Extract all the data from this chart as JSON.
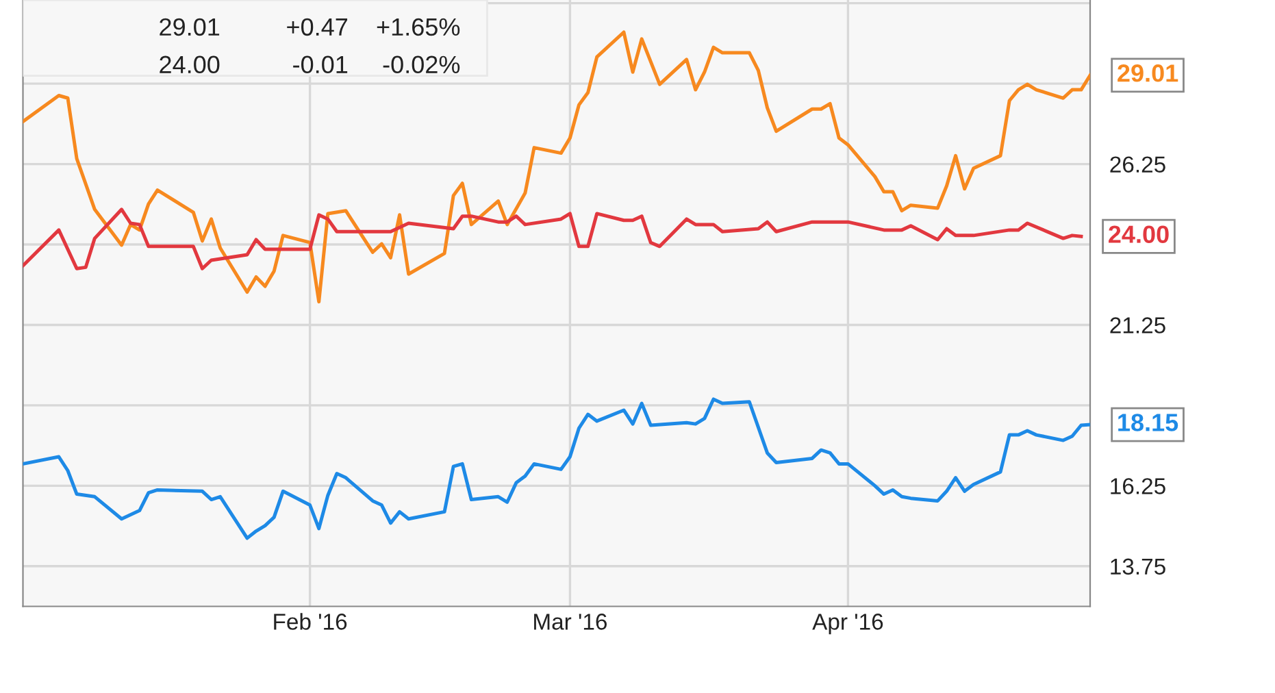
{
  "chart_data": {
    "type": "line",
    "xlim": [
      "2015-12-31",
      "2016-04-28"
    ],
    "xticks": [
      {
        "value": "2016-02-01",
        "label": "Feb '16"
      },
      {
        "value": "2016-03-01",
        "label": "Mar '16"
      },
      {
        "value": "2016-04-01",
        "label": "Apr '16"
      }
    ],
    "ylim": [
      12.5,
      31.35
    ],
    "yticks": [
      13.75,
      16.25,
      {
        "value": 18.75,
        "label": null
      },
      21.25,
      {
        "value": 23.75,
        "label": null
      },
      26.25,
      {
        "value": 28.75,
        "label": null
      },
      {
        "value": 31.25,
        "label": null
      }
    ],
    "grid": true,
    "marker": "none",
    "line_style": "solid",
    "series": [
      {
        "color": "#f7891f",
        "x": [
          "2015-12-31",
          "2016-01-04",
          "2016-01-05",
          "2016-01-06",
          "2016-01-08",
          "2016-01-11",
          "2016-01-12",
          "2016-01-13",
          "2016-01-14",
          "2016-01-15",
          "2016-01-19",
          "2016-01-20",
          "2016-01-21",
          "2016-01-22",
          "2016-01-25",
          "2016-01-26",
          "2016-01-27",
          "2016-01-28",
          "2016-01-29",
          "2016-02-01",
          "2016-02-02",
          "2016-02-03",
          "2016-02-05",
          "2016-02-08",
          "2016-02-09",
          "2016-02-10",
          "2016-02-11",
          "2016-02-12",
          "2016-02-16",
          "2016-02-17",
          "2016-02-18",
          "2016-02-19",
          "2016-02-22",
          "2016-02-23",
          "2016-02-25",
          "2016-02-26",
          "2016-02-29",
          "2016-03-01",
          "2016-03-02",
          "2016-03-03",
          "2016-03-04",
          "2016-03-07",
          "2016-03-08",
          "2016-03-09",
          "2016-03-11",
          "2016-03-14",
          "2016-03-15",
          "2016-03-16",
          "2016-03-17",
          "2016-03-18",
          "2016-03-21",
          "2016-03-22",
          "2016-03-23",
          "2016-03-24",
          "2016-03-28",
          "2016-03-29",
          "2016-03-30",
          "2016-03-31",
          "2016-04-01",
          "2016-04-04",
          "2016-04-05",
          "2016-04-06",
          "2016-04-07",
          "2016-04-08",
          "2016-04-11",
          "2016-04-12",
          "2016-04-13",
          "2016-04-14",
          "2016-04-15",
          "2016-04-18",
          "2016-04-19",
          "2016-04-20",
          "2016-04-21",
          "2016-04-22",
          "2016-04-25",
          "2016-04-26",
          "2016-04-27",
          "2016-04-28"
        ],
        "values": [
          27.57,
          28.38,
          28.3,
          26.42,
          24.84,
          23.73,
          24.37,
          24.2,
          25.01,
          25.44,
          24.75,
          23.86,
          24.54,
          23.64,
          22.27,
          22.74,
          22.45,
          22.92,
          24.03,
          23.81,
          21.97,
          24.71,
          24.8,
          23.51,
          23.77,
          23.34,
          24.67,
          22.83,
          23.47,
          25.27,
          25.65,
          24.37,
          25.1,
          24.37,
          25.35,
          26.76,
          26.59,
          27.06,
          28.09,
          28.47,
          29.58,
          30.35,
          29.11,
          30.14,
          28.73,
          29.5,
          28.56,
          29.11,
          29.88,
          29.71,
          29.71,
          29.16,
          28.0,
          27.27,
          27.96,
          27.96,
          28.13,
          27.06,
          26.85,
          25.86,
          25.39,
          25.39,
          24.8,
          24.97,
          24.88,
          25.57,
          26.51,
          25.48,
          26.12,
          26.51,
          28.22,
          28.56,
          28.73,
          28.56,
          28.3,
          28.56,
          28.56,
          29.01
        ]
      },
      {
        "color": "#e2383f",
        "x": [
          "2015-12-31",
          "2016-01-04",
          "2016-01-06",
          "2016-01-07",
          "2016-01-08",
          "2016-01-11",
          "2016-01-12",
          "2016-01-13",
          "2016-01-14",
          "2016-01-19",
          "2016-01-20",
          "2016-01-21",
          "2016-01-25",
          "2016-01-26",
          "2016-01-27",
          "2016-02-01",
          "2016-02-02",
          "2016-02-03",
          "2016-02-04",
          "2016-02-10",
          "2016-02-12",
          "2016-02-17",
          "2016-02-18",
          "2016-02-19",
          "2016-02-22",
          "2016-02-23",
          "2016-02-24",
          "2016-02-25",
          "2016-02-29",
          "2016-03-01",
          "2016-03-02",
          "2016-03-03",
          "2016-03-04",
          "2016-03-07",
          "2016-03-08",
          "2016-03-09",
          "2016-03-10",
          "2016-03-11",
          "2016-03-14",
          "2016-03-15",
          "2016-03-17",
          "2016-03-18",
          "2016-03-22",
          "2016-03-23",
          "2016-03-24",
          "2016-03-28",
          "2016-04-01",
          "2016-04-05",
          "2016-04-07",
          "2016-04-08",
          "2016-04-11",
          "2016-04-12",
          "2016-04-13",
          "2016-04-15",
          "2016-04-19",
          "2016-04-20",
          "2016-04-21",
          "2016-04-25",
          "2016-04-26",
          "2016-04-27"
        ],
        "values": [
          23.09,
          24.2,
          23.0,
          23.04,
          23.94,
          24.84,
          24.41,
          24.37,
          23.69,
          23.69,
          23.0,
          23.26,
          23.43,
          23.9,
          23.6,
          23.6,
          24.67,
          24.54,
          24.15,
          24.15,
          24.41,
          24.24,
          24.63,
          24.63,
          24.45,
          24.45,
          24.63,
          24.37,
          24.54,
          24.71,
          23.69,
          23.69,
          24.71,
          24.5,
          24.5,
          24.63,
          23.81,
          23.69,
          24.54,
          24.37,
          24.37,
          24.15,
          24.24,
          24.45,
          24.15,
          24.45,
          24.45,
          24.2,
          24.2,
          24.33,
          23.9,
          24.24,
          24.03,
          24.03,
          24.2,
          24.2,
          24.41,
          23.94,
          24.03,
          24.0
        ]
      },
      {
        "color": "#1e8ae6",
        "x": [
          "2015-12-31",
          "2016-01-04",
          "2016-01-05",
          "2016-01-06",
          "2016-01-08",
          "2016-01-11",
          "2016-01-13",
          "2016-01-14",
          "2016-01-15",
          "2016-01-20",
          "2016-01-21",
          "2016-01-22",
          "2016-01-25",
          "2016-01-26",
          "2016-01-27",
          "2016-01-28",
          "2016-01-29",
          "2016-02-01",
          "2016-02-02",
          "2016-02-03",
          "2016-02-04",
          "2016-02-05",
          "2016-02-08",
          "2016-02-09",
          "2016-02-10",
          "2016-02-11",
          "2016-02-12",
          "2016-02-16",
          "2016-02-17",
          "2016-02-18",
          "2016-02-19",
          "2016-02-22",
          "2016-02-23",
          "2016-02-24",
          "2016-02-25",
          "2016-02-26",
          "2016-02-29",
          "2016-03-01",
          "2016-03-02",
          "2016-03-03",
          "2016-03-04",
          "2016-03-07",
          "2016-03-08",
          "2016-03-09",
          "2016-03-10",
          "2016-03-14",
          "2016-03-15",
          "2016-03-16",
          "2016-03-17",
          "2016-03-18",
          "2016-03-21",
          "2016-03-23",
          "2016-03-24",
          "2016-03-28",
          "2016-03-29",
          "2016-03-30",
          "2016-03-31",
          "2016-04-01",
          "2016-04-04",
          "2016-04-05",
          "2016-04-06",
          "2016-04-07",
          "2016-04-08",
          "2016-04-11",
          "2016-04-12",
          "2016-04-13",
          "2016-04-14",
          "2016-04-15",
          "2016-04-18",
          "2016-04-19",
          "2016-04-20",
          "2016-04-21",
          "2016-04-22",
          "2016-04-25",
          "2016-04-26",
          "2016-04-27",
          "2016-04-28"
        ],
        "values": [
          16.93,
          17.15,
          16.72,
          15.99,
          15.91,
          15.22,
          15.48,
          16.03,
          16.12,
          16.08,
          15.82,
          15.91,
          14.62,
          14.84,
          15.01,
          15.27,
          16.08,
          15.65,
          14.92,
          15.95,
          16.63,
          16.5,
          15.78,
          15.65,
          15.09,
          15.44,
          15.22,
          15.44,
          16.85,
          16.93,
          15.82,
          15.91,
          15.74,
          16.34,
          16.55,
          16.93,
          16.76,
          17.15,
          18.04,
          18.47,
          18.26,
          18.6,
          18.17,
          18.81,
          18.13,
          18.21,
          18.17,
          18.34,
          18.94,
          18.81,
          18.86,
          17.27,
          16.97,
          17.1,
          17.36,
          17.27,
          16.93,
          16.93,
          16.25,
          15.99,
          16.12,
          15.91,
          15.86,
          15.78,
          16.08,
          16.5,
          16.08,
          16.29,
          16.68,
          17.83,
          17.83,
          17.96,
          17.83,
          17.66,
          17.79,
          18.13,
          18.15
        ]
      }
    ],
    "annotations": [
      {
        "text": "29.01",
        "x": "2016-04-28",
        "y": 29.01
      },
      {
        "text": "24.00",
        "x": "2016-04-27",
        "y": 24.0
      },
      {
        "text": "18.15",
        "x": "2016-04-28",
        "y": 18.15
      },
      "29.01",
      "+0.47",
      "+1.65%",
      "24.00",
      "-0.01",
      "-0.02%"
    ]
  }
}
